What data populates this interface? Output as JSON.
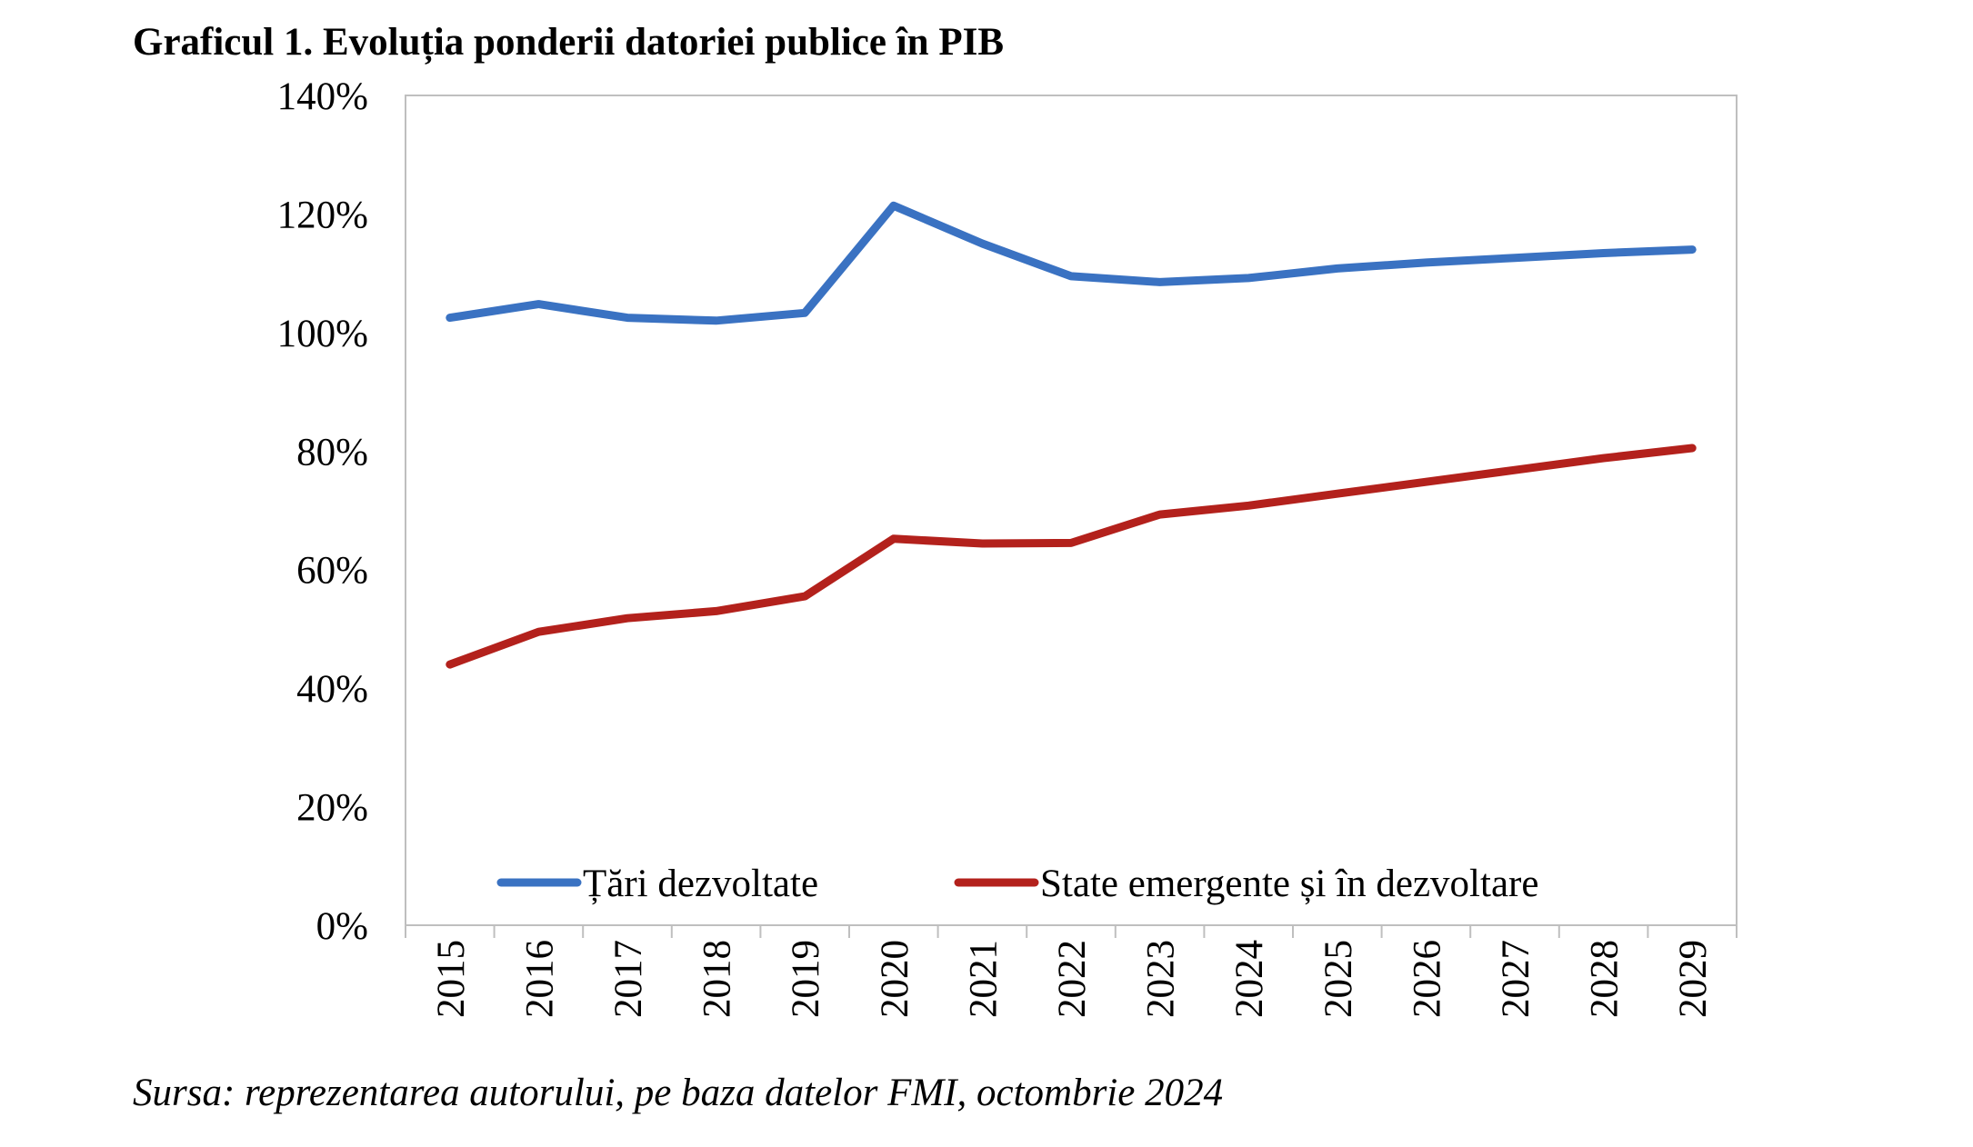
{
  "chart_title": "Graficul 1. Evoluția ponderii datoriei publice în PIB",
  "source_note": "Sursa: reprezentarea autorului, pe baza datelor FMI, octombrie 2024",
  "chart_data": {
    "type": "line",
    "title": "Graficul 1. Evoluția ponderii datoriei publice în PIB",
    "xlabel": "",
    "ylabel": "",
    "ylim": [
      0,
      140
    ],
    "y_unit": "%",
    "y_ticks": [
      "0%",
      "20%",
      "40%",
      "60%",
      "80%",
      "100%",
      "120%",
      "140%"
    ],
    "categories": [
      "2015",
      "2016",
      "2017",
      "2018",
      "2019",
      "2020",
      "2021",
      "2022",
      "2023",
      "2024",
      "2025",
      "2026",
      "2027",
      "2028",
      "2029"
    ],
    "grid": false,
    "legend_position": "bottom-inside",
    "series": [
      {
        "name": "Țări dezvoltate",
        "color": "#3a72c2",
        "values": [
          102.5,
          104.8,
          102.5,
          102,
          103.3,
          121.4,
          115,
          109.5,
          108.5,
          109.2,
          110.8,
          111.8,
          112.6,
          113.4,
          114
        ]
      },
      {
        "name": "State emergente și în dezvoltare",
        "color": "#b3211c",
        "values": [
          44,
          49.5,
          51.8,
          53,
          55.5,
          65.2,
          64.4,
          64.5,
          69.3,
          70.8,
          72.8,
          74.8,
          76.8,
          78.8,
          80.5
        ]
      }
    ]
  }
}
